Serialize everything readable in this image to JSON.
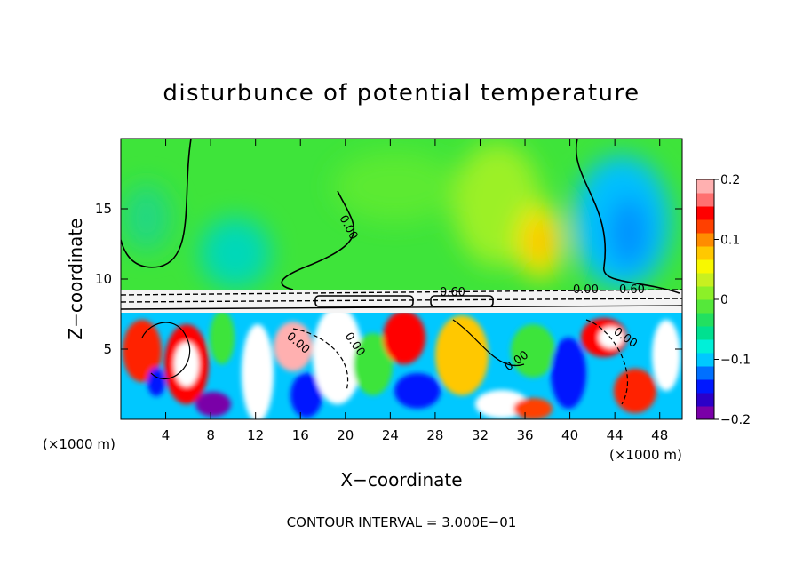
{
  "chart_data": {
    "type": "heatmap",
    "title": "disturbunce of potential temperature",
    "xlabel": "X−coordinate",
    "ylabel": "Z−coordinate",
    "x_unit_left": "(×1000 m)",
    "x_unit_right": "(×1000 m)",
    "footer": "CONTOUR INTERVAL = 3.000E−01",
    "xlim": [
      0,
      50
    ],
    "ylim": [
      0,
      20
    ],
    "x_ticks": [
      4,
      8,
      12,
      16,
      20,
      24,
      28,
      32,
      36,
      40,
      44,
      48
    ],
    "x_tick_labels": [
      "4",
      "8",
      "12",
      "16",
      "20",
      "24",
      "28",
      "32",
      "36",
      "40",
      "44",
      "48"
    ],
    "y_ticks": [
      5,
      10,
      15
    ],
    "y_tick_labels": [
      "5",
      "10",
      "15"
    ],
    "colorbar": {
      "range": [
        -0.2,
        0.2
      ],
      "tick_labels": [
        "0.2",
        "0.1",
        "0",
        "−0.1",
        "−0.2"
      ],
      "tick_values": [
        0.2,
        0.1,
        0,
        -0.1,
        -0.2
      ],
      "colors": [
        "#7a00a8",
        "#2b00c8",
        "#0018ff",
        "#0070ff",
        "#00c8ff",
        "#00f0d8",
        "#00e090",
        "#22e060",
        "#55e83a",
        "#8cf028",
        "#c8f020",
        "#f8f800",
        "#ffc800",
        "#ff8c00",
        "#ff4000",
        "#ff0000",
        "#ff7070",
        "#ffb0b0"
      ]
    },
    "contour_labels": [
      "0.00",
      "0.00",
      "0.60",
      "0.00",
      "0.60",
      "0.00",
      "0.00",
      "0.00",
      "0.00"
    ],
    "field_regions": {
      "upper_background": 0.02,
      "positive_anomaly_near": {
        "x": 37,
        "z": 12.5,
        "value": 0.1
      },
      "negative_anomaly_near": {
        "x": 45,
        "z": 14.5,
        "value": -0.08
      },
      "negative_anomaly_left": {
        "x": 10,
        "z": 12,
        "value": -0.04
      },
      "lower_layer": "turbulent mixed field below ~8, values from -0.2 to 0.2"
    }
  }
}
